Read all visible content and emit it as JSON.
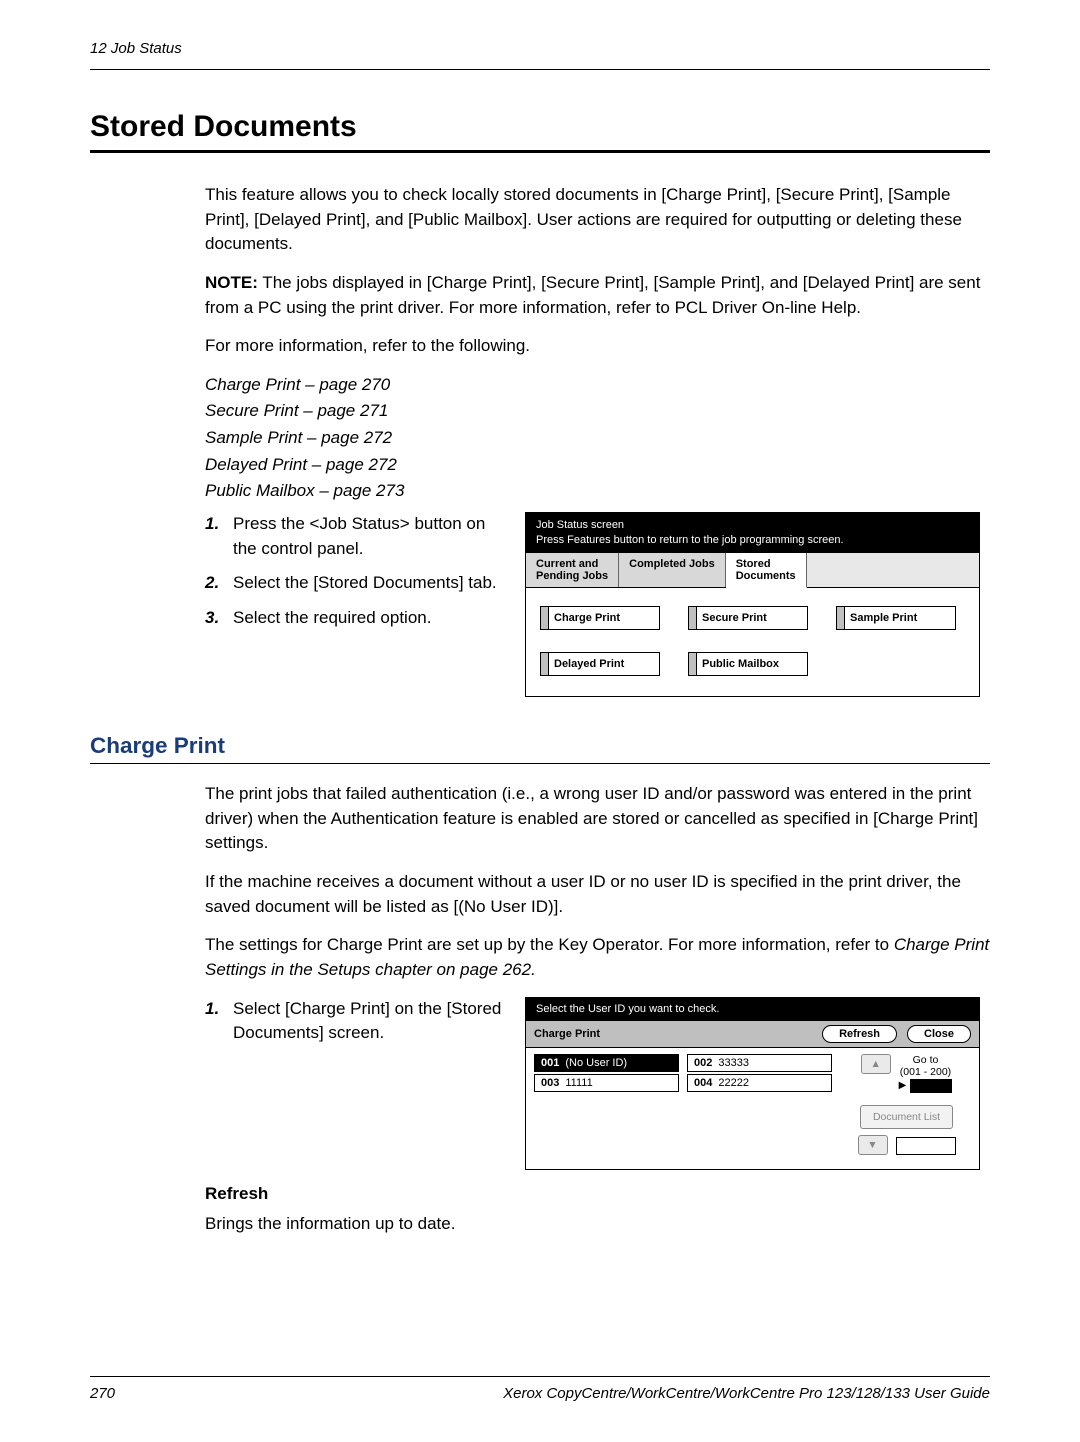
{
  "running_header": "12  Job Status",
  "h1": "Stored Documents",
  "intro_para": "This feature allows you to check locally stored documents in [Charge Print], [Secure Print], [Sample Print], [Delayed Print], and [Public Mailbox]. User actions are required for outputting or deleting these documents.",
  "note_label": "NOTE:",
  "note_text": " The jobs displayed in [Charge Print], [Secure Print], [Sample Print], and [Delayed Print] are sent from a PC using the print driver. For more information, refer to PCL Driver On-line Help.",
  "more_info": "For more information, refer to the following.",
  "refs": {
    "r1": "Charge Print – page 270",
    "r2": "Secure Print – page 271",
    "r3": "Sample Print – page 272",
    "r4": "Delayed Print – page 272",
    "r5": "Public Mailbox – page 273"
  },
  "steps1": {
    "s1": "Press the <Job Status> button on the control panel.",
    "s2": "Select the [Stored Documents] tab.",
    "s3": "Select the required option."
  },
  "scr1": {
    "hdr_line1": "Job Status screen",
    "hdr_line2": "Press Features button to return to the job programming screen.",
    "tab1_l1": "Current and",
    "tab1_l2": "Pending Jobs",
    "tab2": "Completed Jobs",
    "tab3_l1": "Stored",
    "tab3_l2": "Documents",
    "b1": "Charge Print",
    "b2": "Secure Print",
    "b3": "Sample Print",
    "b4": "Delayed Print",
    "b5": "Public Mailbox"
  },
  "h2": "Charge Print",
  "cp_para1": "The print jobs that failed authentication (i.e., a wrong user ID and/or password was entered in the print driver) when the Authentication feature is enabled are stored or cancelled as specified in [Charge Print] settings.",
  "cp_para2": "If the machine receives a document without a user ID or no user ID is specified in the print driver, the saved document will be listed as [(No User ID)].",
  "cp_para3a": "The settings for Charge Print are set up by the Key Operator. For more information, refer to ",
  "cp_para3b": "Charge Print Settings in the Setups chapter on page 262.",
  "steps2": {
    "s1": "Select [Charge Print] on the [Stored Documents] screen."
  },
  "scr2": {
    "hdr": "Select the User ID you want to check.",
    "title": "Charge Print",
    "refresh": "Refresh",
    "close": "Close",
    "rows": {
      "r1_idx": "001",
      "r1_val": "(No User ID)",
      "r2_idx": "002",
      "r2_val": "33333",
      "r3_idx": "003",
      "r3_val": "11111",
      "r4_idx": "004",
      "r4_val": "22222"
    },
    "goto": "Go to",
    "range": "(001 - 200)",
    "doclist": "Document List"
  },
  "h3_refresh": "Refresh",
  "refresh_para": "Brings the information up to date.",
  "page_number": "270",
  "footer_text": "Xerox CopyCentre/WorkCentre/WorkCentre Pro 123/128/133 User Guide"
}
